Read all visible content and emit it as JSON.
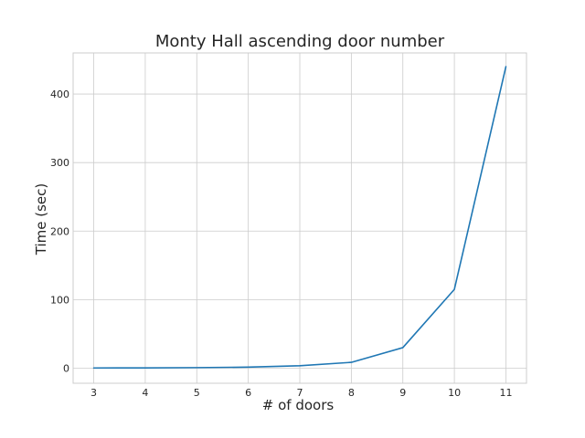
{
  "chart_data": {
    "type": "line",
    "title": "Monty Hall ascending door number",
    "xlabel": "# of doors",
    "ylabel": "Time (sec)",
    "x": [
      3,
      4,
      5,
      6,
      7,
      8,
      9,
      10,
      11
    ],
    "series": [
      {
        "values": [
          0.3,
          0.4,
          0.8,
          1.5,
          3.5,
          8.5,
          30,
          115,
          440
        ],
        "color": "#1f77b4"
      }
    ],
    "xlim": [
      2.6,
      11.4
    ],
    "ylim": [
      -22,
      460
    ],
    "xticks": [
      3,
      4,
      5,
      6,
      7,
      8,
      9,
      10,
      11
    ],
    "yticks": [
      0,
      100,
      200,
      300,
      400
    ],
    "grid": true,
    "style": "whitegrid"
  }
}
